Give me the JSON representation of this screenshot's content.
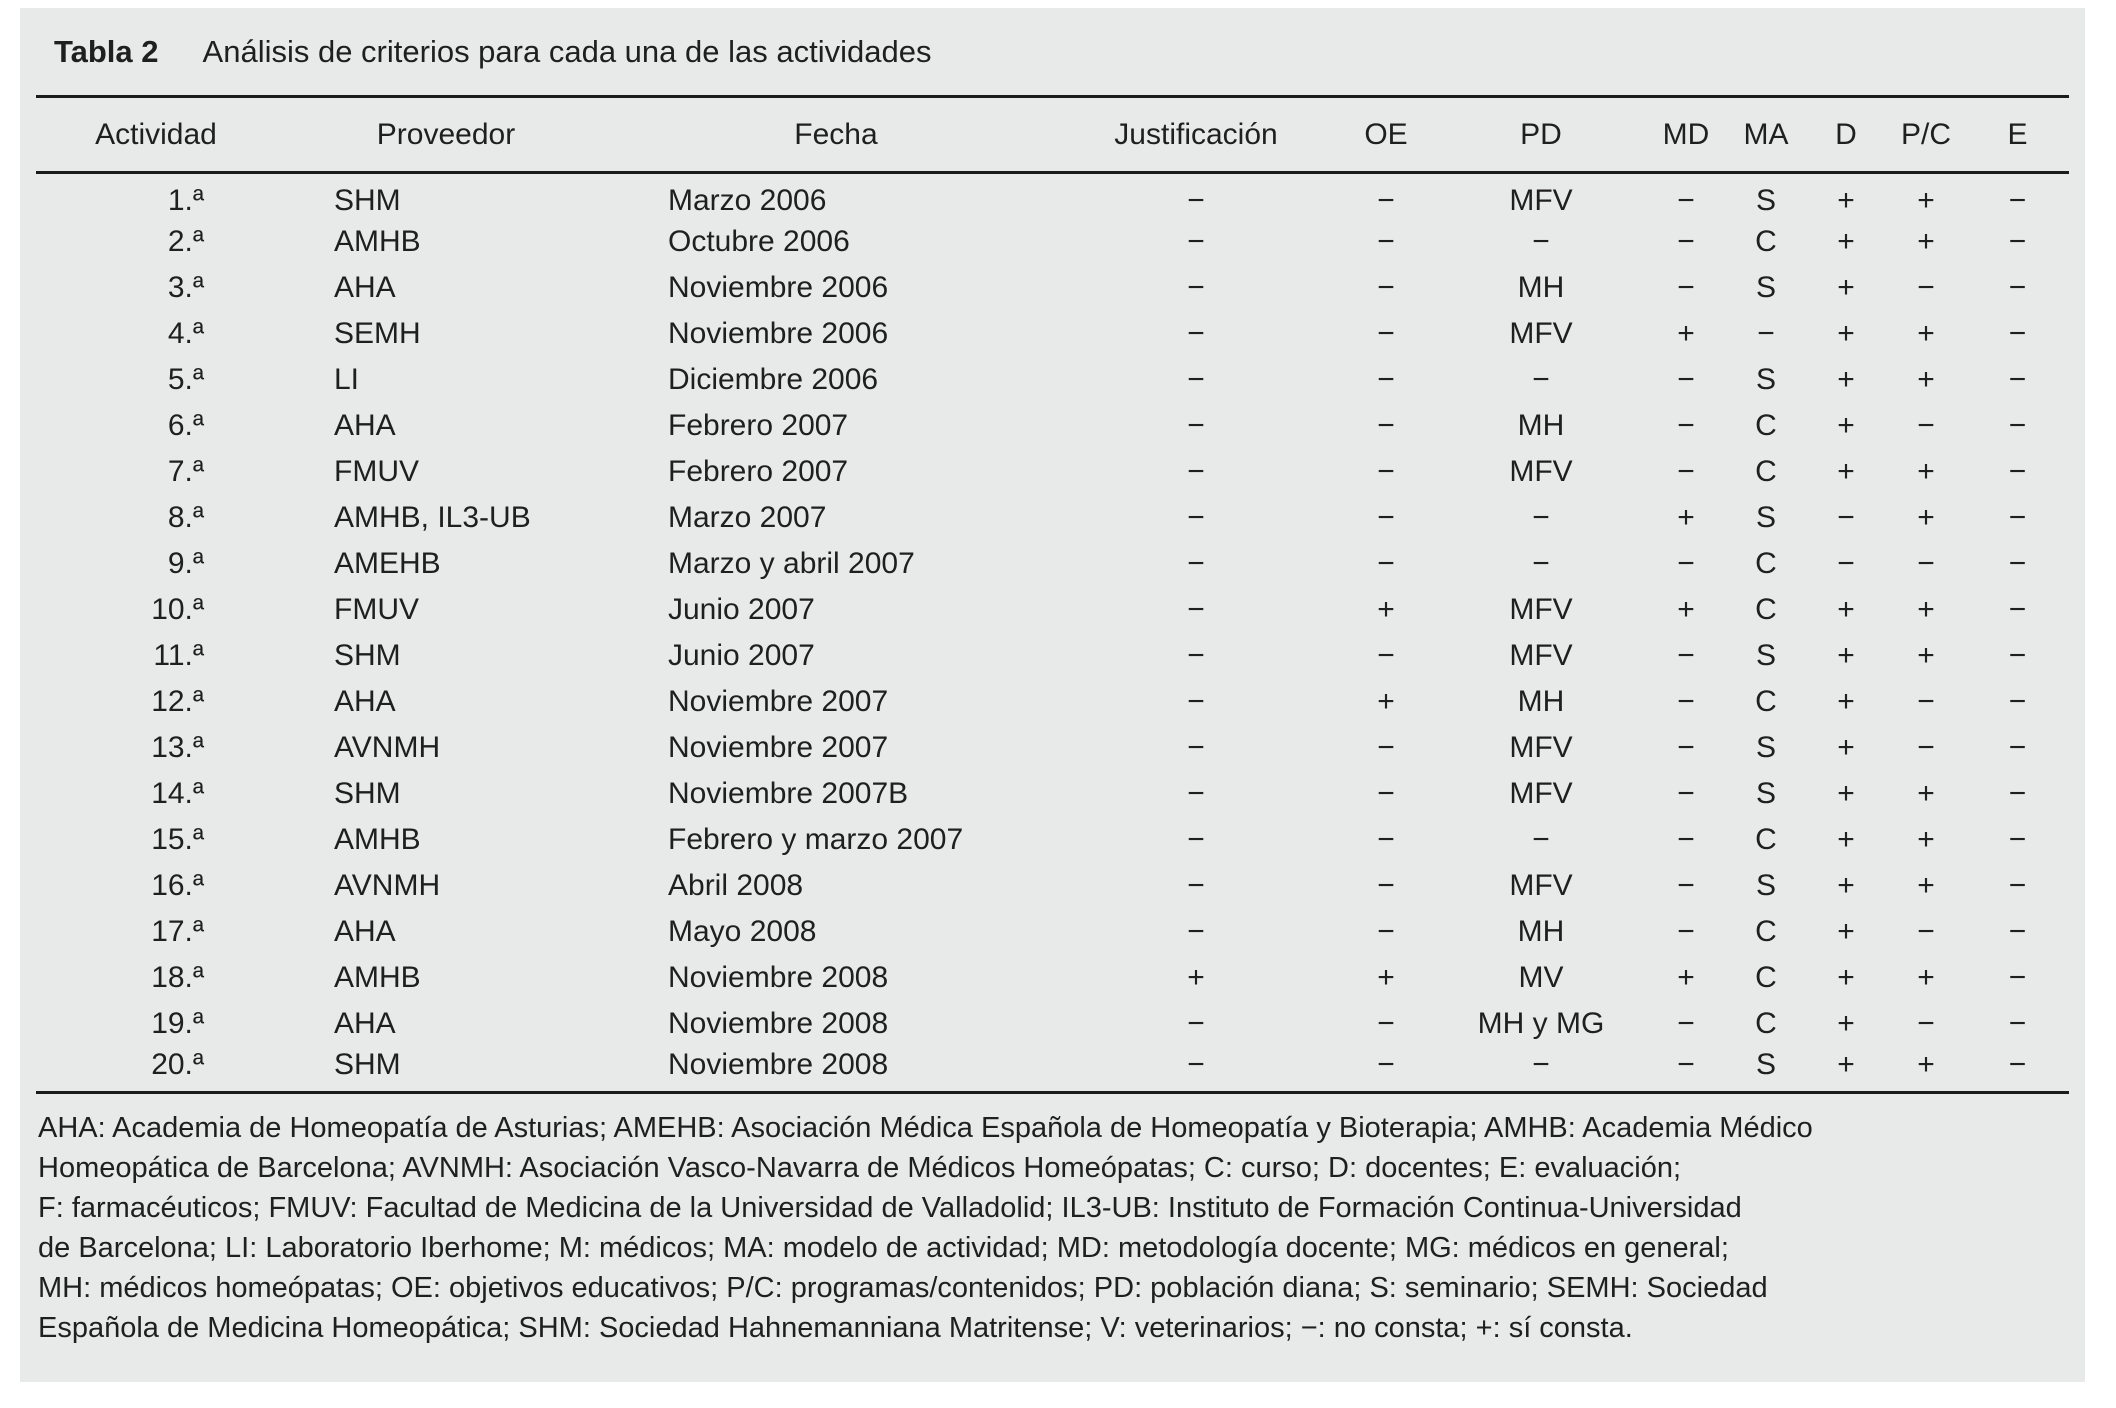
{
  "table": {
    "title_label": "Tabla 2",
    "title_text": "Análisis de criterios para cada una de las actividades",
    "columns": [
      "Actividad",
      "Proveedor",
      "Fecha",
      "Justificación",
      "OE",
      "PD",
      "MD",
      "MA",
      "D",
      "P/C",
      "E"
    ],
    "rows": [
      [
        "1.ª",
        "SHM",
        "Marzo 2006",
        "−",
        "−",
        "MFV",
        "−",
        "S",
        "+",
        "+",
        "−"
      ],
      [
        "2.ª",
        "AMHB",
        "Octubre 2006",
        "−",
        "−",
        "−",
        "−",
        "C",
        "+",
        "+",
        "−"
      ],
      [
        "3.ª",
        "AHA",
        "Noviembre 2006",
        "−",
        "−",
        "MH",
        "−",
        "S",
        "+",
        "−",
        "−"
      ],
      [
        "4.ª",
        "SEMH",
        "Noviembre 2006",
        "−",
        "−",
        "MFV",
        "+",
        "−",
        "+",
        "+",
        "−"
      ],
      [
        "5.ª",
        "LI",
        "Diciembre 2006",
        "−",
        "−",
        "−",
        "−",
        "S",
        "+",
        "+",
        "−"
      ],
      [
        "6.ª",
        "AHA",
        "Febrero 2007",
        "−",
        "−",
        "MH",
        "−",
        "C",
        "+",
        "−",
        "−"
      ],
      [
        "7.ª",
        "FMUV",
        "Febrero 2007",
        "−",
        "−",
        "MFV",
        "−",
        "C",
        "+",
        "+",
        "−"
      ],
      [
        "8.ª",
        "AMHB, IL3-UB",
        "Marzo 2007",
        "−",
        "−",
        "−",
        "+",
        "S",
        "−",
        "+",
        "−"
      ],
      [
        "9.ª",
        "AMEHB",
        "Marzo y abril 2007",
        "−",
        "−",
        "−",
        "−",
        "C",
        "−",
        "−",
        "−"
      ],
      [
        "10.ª",
        "FMUV",
        "Junio 2007",
        "−",
        "+",
        "MFV",
        "+",
        "C",
        "+",
        "+",
        "−"
      ],
      [
        "11.ª",
        "SHM",
        "Junio 2007",
        "−",
        "−",
        "MFV",
        "−",
        "S",
        "+",
        "+",
        "−"
      ],
      [
        "12.ª",
        "AHA",
        "Noviembre 2007",
        "−",
        "+",
        "MH",
        "−",
        "C",
        "+",
        "−",
        "−"
      ],
      [
        "13.ª",
        "AVNMH",
        "Noviembre 2007",
        "−",
        "−",
        "MFV",
        "−",
        "S",
        "+",
        "−",
        "−"
      ],
      [
        "14.ª",
        "SHM",
        "Noviembre 2007B",
        "−",
        "−",
        "MFV",
        "−",
        "S",
        "+",
        "+",
        "−"
      ],
      [
        "15.ª",
        "AMHB",
        "Febrero y marzo 2007",
        "−",
        "−",
        "−",
        "−",
        "C",
        "+",
        "+",
        "−"
      ],
      [
        "16.ª",
        "AVNMH",
        "Abril 2008",
        "−",
        "−",
        "MFV",
        "−",
        "S",
        "+",
        "+",
        "−"
      ],
      [
        "17.ª",
        "AHA",
        "Mayo 2008",
        "−",
        "−",
        "MH",
        "−",
        "C",
        "+",
        "−",
        "−"
      ],
      [
        "18.ª",
        "AMHB",
        "Noviembre 2008",
        "+",
        "+",
        "MV",
        "+",
        "C",
        "+",
        "+",
        "−"
      ],
      [
        "19.ª",
        "AHA",
        "Noviembre 2008",
        "−",
        "−",
        "MH y MG",
        "−",
        "C",
        "+",
        "−",
        "−"
      ],
      [
        "20.ª",
        "SHM",
        "Noviembre 2008",
        "−",
        "−",
        "−",
        "−",
        "S",
        "+",
        "+",
        "−"
      ]
    ],
    "footnote_lines": [
      "AHA: Academia de Homeopatía de Asturias; AMEHB: Asociación Médica Española de Homeopatía y Bioterapia; AMHB: Academia Médico",
      "Homeopática de Barcelona; AVNMH: Asociación Vasco-Navarra de Médicos Homeópatas; C: curso; D: docentes; E: evaluación;",
      "F: farmacéuticos; FMUV: Facultad de Medicina de la Universidad de Valladolid; IL3-UB: Instituto de Formación Continua-Universidad",
      "de Barcelona; LI: Laboratorio Iberhome; M: médicos; MA: modelo de actividad; MD: metodología docente; MG: médicos en general;",
      "MH: médicos homeópatas; OE: objetivos educativos; P/C: programas/contenidos; PD: población diana; S: seminario; SEMH: Sociedad",
      "Española de Medicina Homeopática; SHM: Sociedad Hahnemanniana Matritense; V: veterinarios; −: no consta; +: sí consta."
    ]
  },
  "colors": {
    "panel_bg": "#e8e9e9",
    "text": "#1f1f1f",
    "rule": "#1b1b1b"
  }
}
